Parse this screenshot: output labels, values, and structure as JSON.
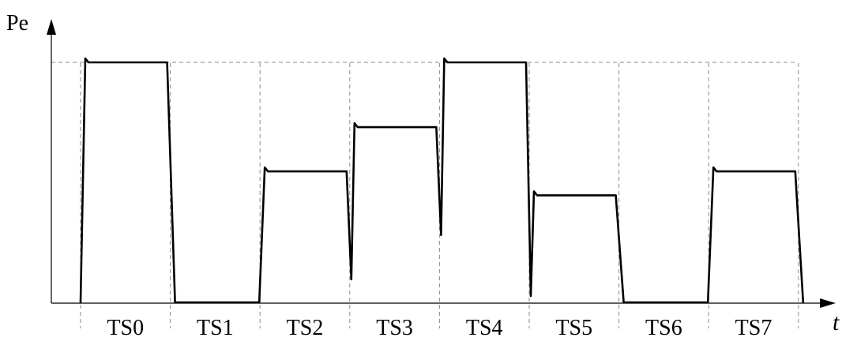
{
  "diagram": {
    "y_axis_label": "Pe",
    "x_axis_label": "t",
    "slots": [
      {
        "label": "TS0",
        "level": 1.0
      },
      {
        "label": "TS1",
        "level": 0.0
      },
      {
        "label": "TS2",
        "level": 0.546
      },
      {
        "label": "TS3",
        "level": 0.73
      },
      {
        "label": "TS4",
        "level": 1.0
      },
      {
        "label": "TS5",
        "level": 0.446
      },
      {
        "label": "TS6",
        "level": 0.0
      },
      {
        "label": "TS7",
        "level": 0.546
      }
    ]
  }
}
